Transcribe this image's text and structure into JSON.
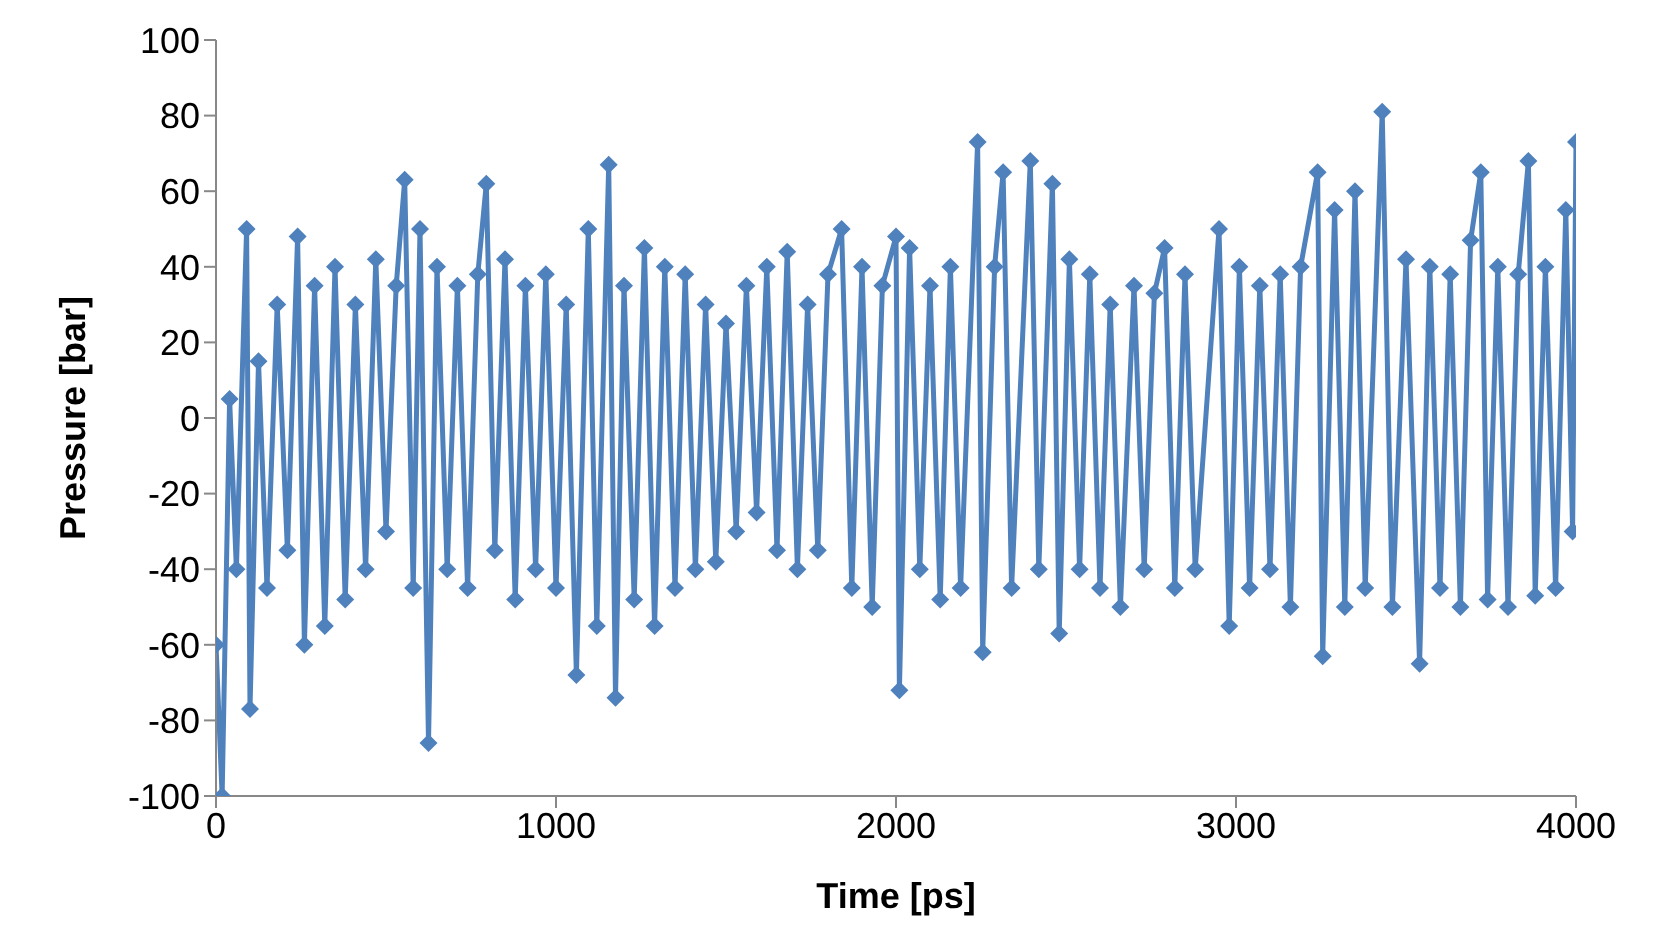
{
  "chart_data": {
    "type": "line",
    "xlabel": "Time [ps]",
    "ylabel": "Pressure [bar]",
    "xlim": [
      0,
      4000
    ],
    "xticks": [
      0,
      1000,
      2000,
      3000,
      4000
    ],
    "ylim": [
      -100,
      100
    ],
    "yticks": [
      -100,
      -80,
      -60,
      -40,
      -20,
      0,
      20,
      40,
      60,
      80,
      100
    ],
    "marker": "diamond",
    "line_style": "solid",
    "series": [
      {
        "color": "#4f81bd",
        "x": [
          0,
          18,
          40,
          60,
          90,
          100,
          125,
          150,
          180,
          210,
          240,
          260,
          290,
          320,
          350,
          380,
          410,
          440,
          470,
          500,
          530,
          555,
          580,
          600,
          625,
          650,
          680,
          710,
          740,
          770,
          795,
          820,
          850,
          880,
          910,
          940,
          970,
          1000,
          1030,
          1060,
          1095,
          1120,
          1155,
          1175,
          1200,
          1230,
          1260,
          1290,
          1320,
          1350,
          1380,
          1410,
          1440,
          1470,
          1500,
          1530,
          1560,
          1590,
          1620,
          1650,
          1680,
          1710,
          1740,
          1770,
          1800,
          1840,
          1870,
          1900,
          1930,
          1960,
          2000,
          2010,
          2040,
          2070,
          2100,
          2130,
          2160,
          2190,
          2240,
          2255,
          2290,
          2315,
          2340,
          2395,
          2420,
          2460,
          2480,
          2510,
          2540,
          2570,
          2600,
          2630,
          2660,
          2700,
          2730,
          2760,
          2790,
          2820,
          2850,
          2880,
          2950,
          2980,
          3010,
          3040,
          3070,
          3100,
          3130,
          3160,
          3190,
          3240,
          3255,
          3290,
          3320,
          3350,
          3380,
          3430,
          3460,
          3500,
          3540,
          3570,
          3600,
          3630,
          3660,
          3690,
          3720,
          3740,
          3770,
          3800,
          3830,
          3860,
          3880,
          3910,
          3940,
          3970,
          3990,
          4000
        ],
        "values": [
          -60,
          -100,
          5,
          -40,
          50,
          -77,
          15,
          -45,
          30,
          -35,
          48,
          -60,
          35,
          -55,
          40,
          -48,
          30,
          -40,
          42,
          -30,
          35,
          63,
          -45,
          50,
          -86,
          40,
          -40,
          35,
          -45,
          38,
          62,
          -35,
          42,
          -48,
          35,
          -40,
          38,
          -45,
          30,
          -68,
          50,
          -55,
          67,
          -74,
          35,
          -48,
          45,
          -55,
          40,
          -45,
          38,
          -40,
          30,
          -38,
          25,
          -30,
          35,
          -25,
          40,
          -35,
          44,
          -40,
          30,
          -35,
          38,
          50,
          -45,
          40,
          -50,
          35,
          48,
          -72,
          45,
          -40,
          35,
          -48,
          40,
          -45,
          73,
          -62,
          40,
          65,
          -45,
          68,
          -40,
          62,
          -57,
          42,
          -40,
          38,
          -45,
          30,
          -50,
          35,
          -40,
          33,
          45,
          -45,
          38,
          -40,
          50,
          -55,
          40,
          -45,
          35,
          -40,
          38,
          -50,
          40,
          65,
          -63,
          55,
          -50,
          60,
          -45,
          81,
          -50,
          42,
          -65,
          40,
          -45,
          38,
          -50,
          47,
          65,
          -48,
          40,
          -50,
          38,
          68,
          -47,
          40,
          -45,
          55,
          -30,
          73
        ]
      }
    ]
  }
}
